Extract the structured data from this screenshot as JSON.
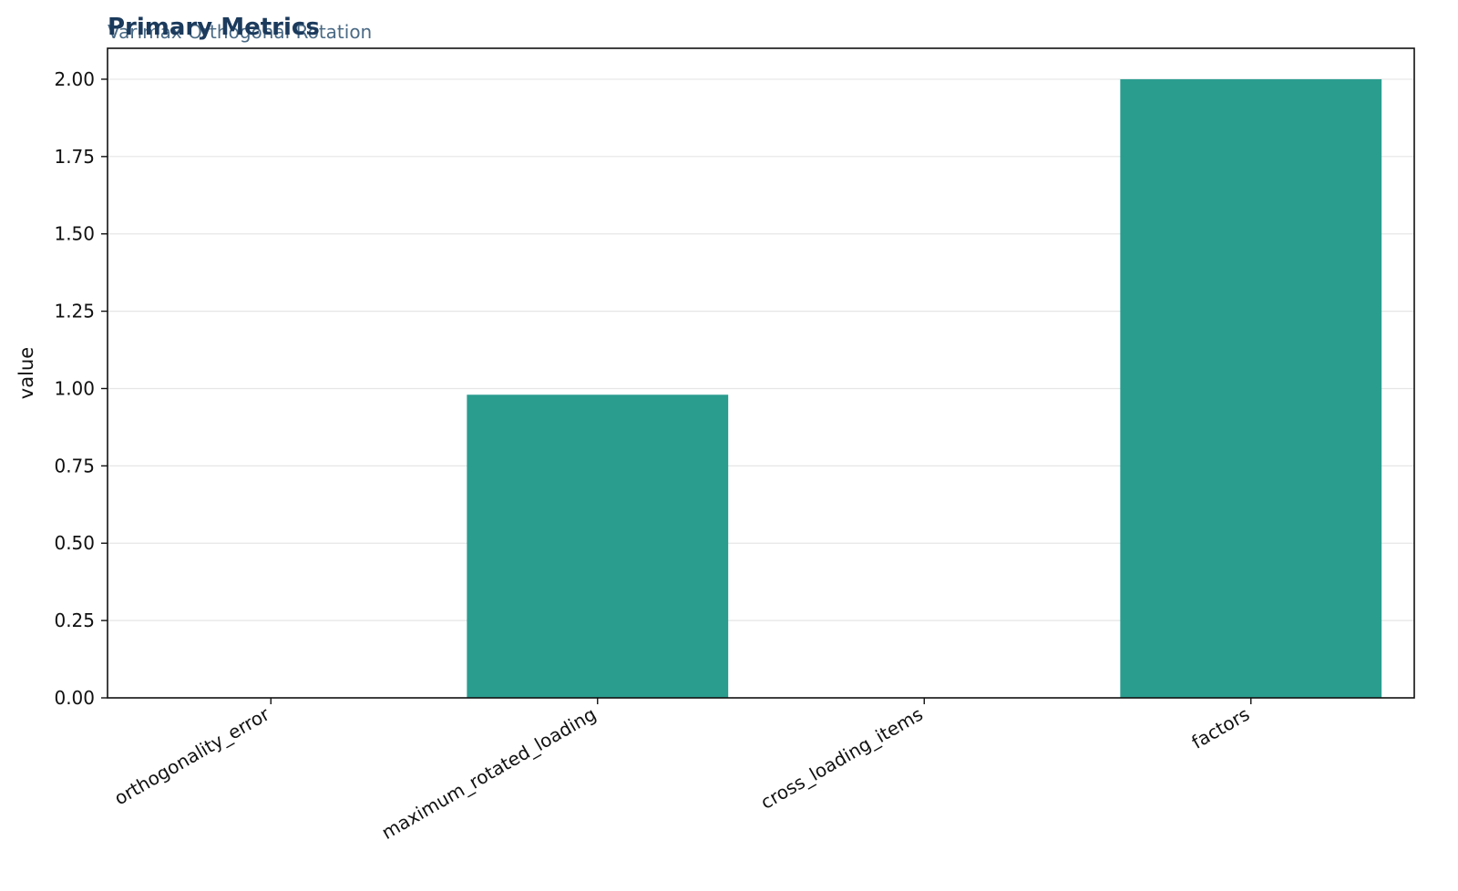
{
  "chart_data": {
    "type": "bar",
    "title": "Primary Metrics",
    "subtitle": "Varimax Orthogonal Rotation",
    "xlabel": "",
    "ylabel": "value",
    "categories": [
      "orthogonality_error",
      "maximum_rotated_loading",
      "cross_loading_items",
      "factors"
    ],
    "values": [
      0.0,
      0.98,
      0.0,
      2.0
    ],
    "ylim": [
      0,
      2.1
    ],
    "yticks": [
      "0.00",
      "0.25",
      "0.50",
      "0.75",
      "1.00",
      "1.25",
      "1.50",
      "1.75",
      "2.00"
    ],
    "grid": "horizontal",
    "bar_color": "#2a9d8f",
    "title_color": "#1b3a5c",
    "subtitle_color": "#4a6a85"
  }
}
